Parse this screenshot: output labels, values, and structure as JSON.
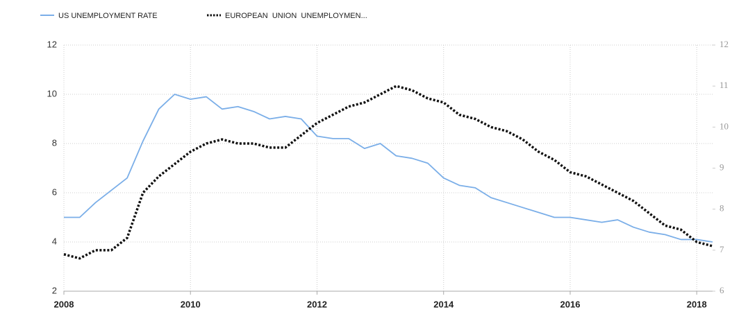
{
  "chart_data": {
    "type": "line",
    "x": [
      2008,
      2008.25,
      2008.5,
      2008.75,
      2009,
      2009.25,
      2009.5,
      2009.75,
      2010,
      2010.25,
      2010.5,
      2010.75,
      2011,
      2011.25,
      2011.5,
      2011.75,
      2012,
      2012.25,
      2012.5,
      2012.75,
      2013,
      2013.25,
      2013.5,
      2013.75,
      2014,
      2014.25,
      2014.5,
      2014.75,
      2015,
      2015.25,
      2015.5,
      2015.75,
      2016,
      2016.25,
      2016.5,
      2016.75,
      2017,
      2017.25,
      2017.5,
      2017.75,
      2018,
      2018.25
    ],
    "series": [
      {
        "name": "US UNEMPLOYMENT RATE",
        "color": "#7aaee8",
        "axis": "y",
        "values": [
          5.0,
          5.0,
          5.6,
          6.1,
          6.6,
          8.1,
          9.4,
          10.0,
          9.8,
          9.9,
          9.4,
          9.5,
          9.3,
          9.0,
          9.1,
          9.0,
          8.3,
          8.2,
          8.2,
          7.8,
          8.0,
          7.5,
          7.4,
          7.2,
          6.6,
          6.3,
          6.2,
          5.8,
          5.6,
          5.4,
          5.2,
          5.0,
          5.0,
          4.9,
          4.8,
          4.9,
          4.6,
          4.4,
          4.3,
          4.1,
          4.1,
          4.0
        ]
      },
      {
        "name": "EUROPEAN  UNION  UNEMPLOYMEN...",
        "color": "#111111",
        "axis": "y2",
        "values": [
          6.9,
          6.8,
          7.0,
          7.0,
          7.3,
          8.4,
          8.8,
          9.1,
          9.4,
          9.6,
          9.7,
          9.6,
          9.6,
          9.5,
          9.5,
          9.8,
          10.1,
          10.3,
          10.5,
          10.6,
          10.8,
          11.0,
          10.9,
          10.7,
          10.6,
          10.3,
          10.2,
          10.0,
          9.9,
          9.7,
          9.4,
          9.2,
          8.9,
          8.8,
          8.6,
          8.4,
          8.2,
          7.9,
          7.6,
          7.5,
          7.2,
          7.1
        ]
      }
    ],
    "xlim": [
      2008,
      2018.25
    ],
    "xticks": [
      2008,
      2010,
      2012,
      2014,
      2016,
      2018
    ],
    "ylim": [
      2,
      12
    ],
    "yticks": [
      2,
      4,
      6,
      8,
      10,
      12
    ],
    "y2lim": [
      6,
      12
    ],
    "y2ticks": [
      6,
      7,
      8,
      9,
      10,
      11,
      12
    ],
    "grid": true
  }
}
